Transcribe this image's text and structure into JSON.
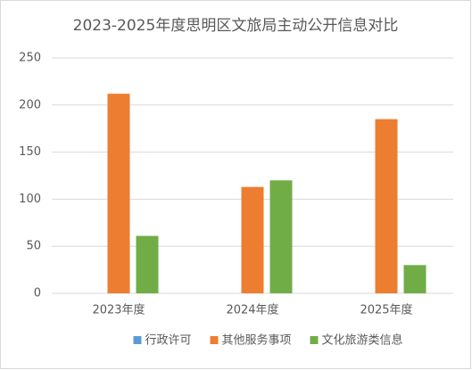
{
  "chart_data": {
    "type": "bar",
    "title": "2023-2025年度思明区文旅局主动公开信息对比",
    "categories": [
      "2023年度",
      "2024年度",
      "2025年度"
    ],
    "series": [
      {
        "name": "行政许可",
        "color": "#5b9bd5",
        "values": [
          0,
          0,
          0
        ]
      },
      {
        "name": "其他服务事项",
        "color": "#ed7d31",
        "values": [
          212,
          113,
          185
        ]
      },
      {
        "name": "文化旅游类信息",
        "color": "#70ad47",
        "values": [
          61,
          120,
          30
        ]
      }
    ],
    "ylim": [
      0,
      250
    ],
    "yticks": [
      0,
      50,
      100,
      150,
      200,
      250
    ],
    "grid": true,
    "legend": "bottom"
  }
}
